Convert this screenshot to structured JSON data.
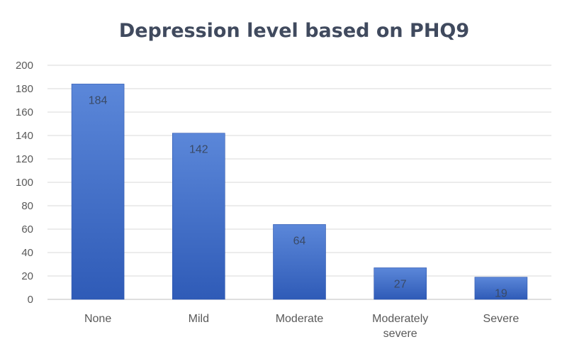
{
  "chart_data": {
    "type": "bar",
    "title": "Depression level based on PHQ9",
    "categories": [
      [
        "None"
      ],
      [
        "Mild"
      ],
      [
        "Moderate"
      ],
      [
        "Moderately",
        "severe"
      ],
      [
        "Severe"
      ]
    ],
    "values": [
      184,
      142,
      64,
      27,
      19
    ],
    "data_labels": [
      "184",
      "142",
      "64",
      "27",
      "19"
    ],
    "ylim": [
      0,
      200
    ],
    "yticks": [
      0,
      20,
      40,
      60,
      80,
      100,
      120,
      140,
      160,
      180,
      200
    ],
    "xlabel": "",
    "ylabel": "",
    "grid": true,
    "legend": "none",
    "colors": {
      "bar_top": "#5b87d9",
      "bar_bottom": "#2f5bb7",
      "bar_edge": "#2c55ad"
    }
  }
}
